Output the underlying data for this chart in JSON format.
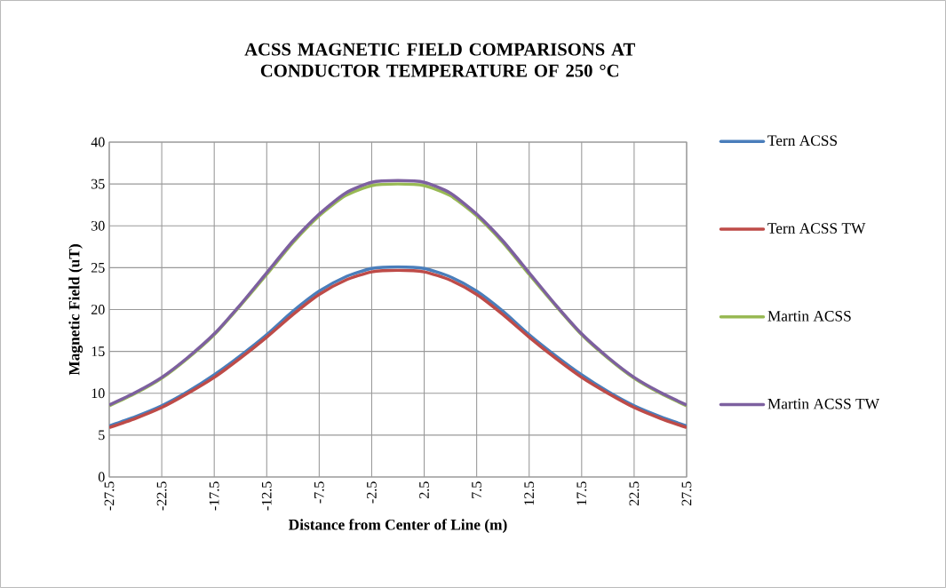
{
  "chart_data": {
    "type": "line",
    "title": "ACSS MAGNETIC FIELD COMPARISONS AT CONDUCTOR TEMPERATURE OF 250 °C",
    "xlabel": "Distance from Center of Line (m)",
    "ylabel": "Magnetic Field (uT)",
    "x": [
      -27.5,
      -25,
      -22.5,
      -20,
      -17.5,
      -15,
      -12.5,
      -10,
      -7.5,
      -5,
      -2.5,
      0,
      2.5,
      5,
      7.5,
      10,
      12.5,
      15,
      17.5,
      20,
      22.5,
      25,
      27.5
    ],
    "series": [
      {
        "name": "Tern ACSS",
        "color": "#4a7ebb",
        "values": [
          6.1,
          7.2,
          8.5,
          10.2,
          12.2,
          14.5,
          17.0,
          19.8,
          22.2,
          23.9,
          24.9,
          25.1,
          24.9,
          23.9,
          22.2,
          19.8,
          17.0,
          14.5,
          12.2,
          10.2,
          8.5,
          7.2,
          6.1
        ]
      },
      {
        "name": "Tern ACSS TW",
        "color": "#be4b48",
        "values": [
          5.9,
          7.0,
          8.3,
          10.0,
          11.9,
          14.2,
          16.7,
          19.4,
          21.8,
          23.5,
          24.5,
          24.7,
          24.5,
          23.5,
          21.8,
          19.4,
          16.7,
          14.2,
          11.9,
          10.0,
          8.3,
          7.0,
          5.9
        ]
      },
      {
        "name": "Martin ACSS",
        "color": "#98b954",
        "values": [
          8.5,
          10.0,
          11.8,
          14.2,
          17.0,
          20.5,
          24.2,
          28.0,
          31.2,
          33.6,
          34.8,
          35.0,
          34.8,
          33.6,
          31.2,
          28.0,
          24.2,
          20.5,
          17.0,
          14.2,
          11.8,
          10.0,
          8.5
        ]
      },
      {
        "name": "Martin ACSS TW",
        "color": "#7d60a0",
        "values": [
          8.6,
          10.1,
          11.9,
          14.3,
          17.1,
          20.6,
          24.4,
          28.2,
          31.4,
          33.9,
          35.2,
          35.4,
          35.2,
          33.9,
          31.4,
          28.2,
          24.4,
          20.6,
          17.1,
          14.3,
          11.9,
          10.1,
          8.6
        ]
      }
    ],
    "xlim": [
      -27.5,
      27.5
    ],
    "xticks": [
      -27.5,
      -22.5,
      -17.5,
      -12.5,
      -7.5,
      -2.5,
      2.5,
      7.5,
      12.5,
      17.5,
      22.5,
      27.5
    ],
    "ylim": [
      0,
      40
    ],
    "yticks": [
      0,
      5,
      10,
      15,
      20,
      25,
      30,
      35,
      40
    ],
    "grid": true,
    "legend": "right",
    "marker": "none",
    "line_style": "solid"
  }
}
